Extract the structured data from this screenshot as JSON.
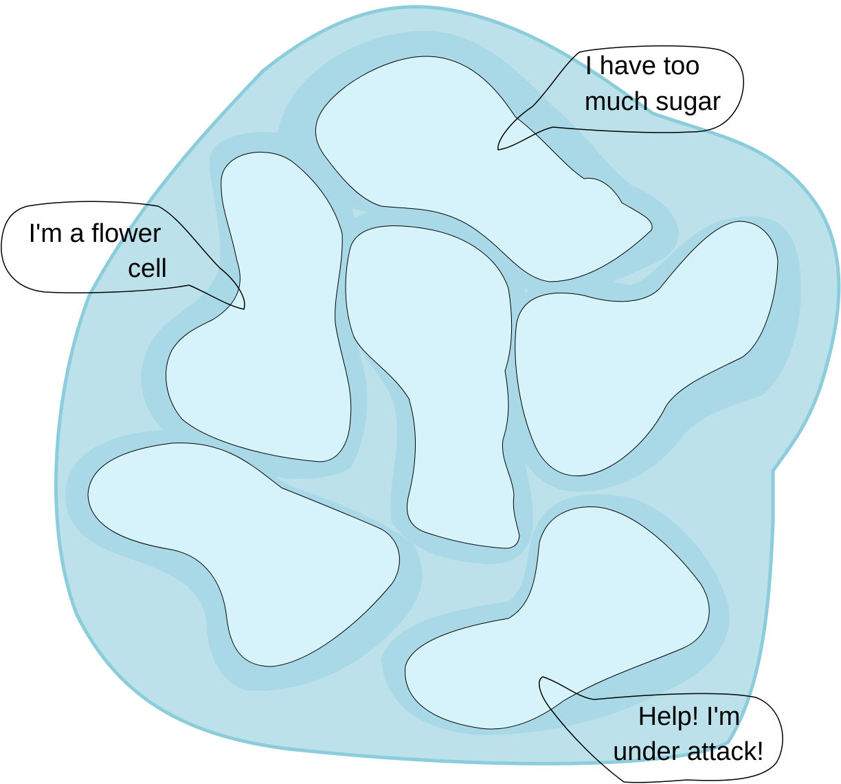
{
  "colors": {
    "cell_fill": "#bce1ea",
    "cell_stroke": "#8ccddb",
    "halo": "#a9d9e6",
    "vacuole_fill": "#d6f3fb",
    "outline": "#000000",
    "bubble_fill": "#ffffff"
  },
  "bubbles": [
    {
      "id": "sugar",
      "lines": [
        "I have too",
        "much sugar"
      ]
    },
    {
      "id": "flower",
      "lines": [
        "I'm a flower",
        "cell"
      ]
    },
    {
      "id": "attack",
      "lines": [
        "Help! I'm",
        "under attack!"
      ]
    }
  ]
}
